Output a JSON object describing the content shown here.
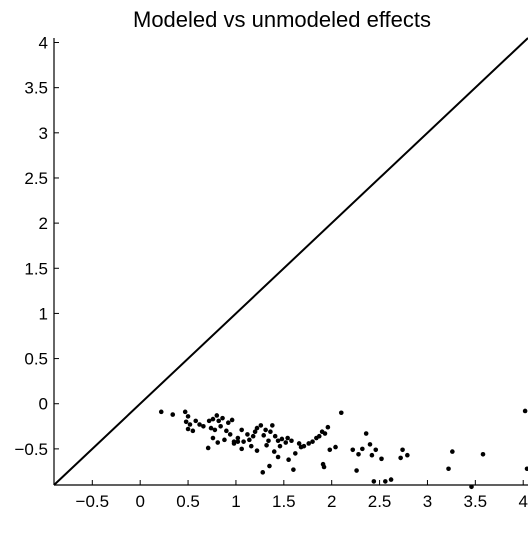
{
  "chart_data": {
    "type": "scatter",
    "title": "Modeled vs unmodeled effects",
    "xlabel": "",
    "ylabel": "",
    "xlim": [
      -0.9,
      4.05
    ],
    "ylim": [
      -0.9,
      4.05
    ],
    "xticks": [
      -0.5,
      0,
      0.5,
      1,
      1.5,
      2,
      2.5,
      3,
      3.5,
      4
    ],
    "xtick_labels": [
      "−0.5",
      "0",
      "0.5",
      "1",
      "1.5",
      "2",
      "2.5",
      "3",
      "3.5",
      "4"
    ],
    "yticks": [
      -0.5,
      0,
      0.5,
      1,
      1.5,
      2,
      2.5,
      3,
      3.5,
      4
    ],
    "ytick_labels": [
      "−0.5",
      "0",
      "0.5",
      "1",
      "1.5",
      "2",
      "2.5",
      "3",
      "3.5",
      "4"
    ],
    "grid": false,
    "reference_line": {
      "type": "identity",
      "x": [
        -0.9,
        4.05
      ],
      "y": [
        -0.9,
        4.05
      ]
    },
    "points": [
      [
        0.22,
        -0.09
      ],
      [
        0.34,
        -0.12
      ],
      [
        0.47,
        -0.09
      ],
      [
        0.5,
        -0.14
      ],
      [
        0.48,
        -0.2
      ],
      [
        0.52,
        -0.23
      ],
      [
        0.58,
        -0.19
      ],
      [
        0.62,
        -0.23
      ],
      [
        0.5,
        -0.28
      ],
      [
        0.55,
        -0.3
      ],
      [
        0.66,
        -0.25
      ],
      [
        0.72,
        -0.19
      ],
      [
        0.76,
        -0.17
      ],
      [
        0.8,
        -0.13
      ],
      [
        0.82,
        -0.19
      ],
      [
        0.86,
        -0.16
      ],
      [
        0.92,
        -0.21
      ],
      [
        0.96,
        -0.18
      ],
      [
        0.74,
        -0.27
      ],
      [
        0.78,
        -0.29
      ],
      [
        0.84,
        -0.25
      ],
      [
        0.9,
        -0.3
      ],
      [
        0.76,
        -0.38
      ],
      [
        0.71,
        -0.49
      ],
      [
        0.81,
        -0.43
      ],
      [
        0.88,
        -0.4
      ],
      [
        0.94,
        -0.34
      ],
      [
        0.98,
        -0.42
      ],
      [
        1.02,
        -0.38
      ],
      [
        1.06,
        -0.29
      ],
      [
        1.08,
        -0.42
      ],
      [
        1.12,
        -0.34
      ],
      [
        1.14,
        -0.4
      ],
      [
        1.18,
        -0.36
      ],
      [
        1.2,
        -0.31
      ],
      [
        1.22,
        -0.27
      ],
      [
        1.26,
        -0.24
      ],
      [
        1.29,
        -0.35
      ],
      [
        1.31,
        -0.29
      ],
      [
        1.34,
        -0.41
      ],
      [
        1.36,
        -0.31
      ],
      [
        1.38,
        -0.24
      ],
      [
        1.41,
        -0.36
      ],
      [
        1.44,
        -0.41
      ],
      [
        1.46,
        -0.47
      ],
      [
        1.48,
        -0.39
      ],
      [
        1.52,
        -0.43
      ],
      [
        1.54,
        -0.38
      ],
      [
        1.58,
        -0.41
      ],
      [
        1.62,
        -0.55
      ],
      [
        1.66,
        -0.44
      ],
      [
        1.71,
        -0.47
      ],
      [
        1.76,
        -0.44
      ],
      [
        1.8,
        -0.42
      ],
      [
        1.84,
        -0.38
      ],
      [
        1.87,
        -0.36
      ],
      [
        1.9,
        -0.31
      ],
      [
        1.93,
        -0.33
      ],
      [
        1.96,
        -0.26
      ],
      [
        1.98,
        -0.51
      ],
      [
        2.04,
        -0.48
      ],
      [
        2.1,
        -0.1
      ],
      [
        1.06,
        -0.5
      ],
      [
        1.16,
        -0.47
      ],
      [
        1.22,
        -0.52
      ],
      [
        1.28,
        -0.76
      ],
      [
        1.35,
        -0.69
      ],
      [
        1.44,
        -0.59
      ],
      [
        1.55,
        -0.62
      ],
      [
        1.6,
        -0.73
      ],
      [
        1.91,
        -0.67
      ],
      [
        1.92,
        -0.7
      ],
      [
        2.22,
        -0.51
      ],
      [
        2.26,
        -0.74
      ],
      [
        2.28,
        -0.56
      ],
      [
        2.32,
        -0.5
      ],
      [
        2.36,
        -0.33
      ],
      [
        2.4,
        -0.45
      ],
      [
        2.42,
        -0.57
      ],
      [
        2.46,
        -0.51
      ],
      [
        2.52,
        -0.61
      ],
      [
        2.56,
        -0.86
      ],
      [
        2.62,
        -0.84
      ],
      [
        2.72,
        -0.6
      ],
      [
        2.74,
        -0.51
      ],
      [
        2.79,
        -0.57
      ],
      [
        3.22,
        -0.72
      ],
      [
        3.26,
        -0.53
      ],
      [
        3.46,
        -0.92
      ],
      [
        3.58,
        -0.56
      ],
      [
        4.02,
        -0.08
      ],
      [
        4.04,
        -0.72
      ],
      [
        0.98,
        -0.44
      ],
      [
        1.02,
        -0.42
      ],
      [
        1.32,
        -0.46
      ],
      [
        1.4,
        -0.53
      ],
      [
        1.68,
        -0.48
      ],
      [
        2.44,
        -0.86
      ]
    ]
  }
}
